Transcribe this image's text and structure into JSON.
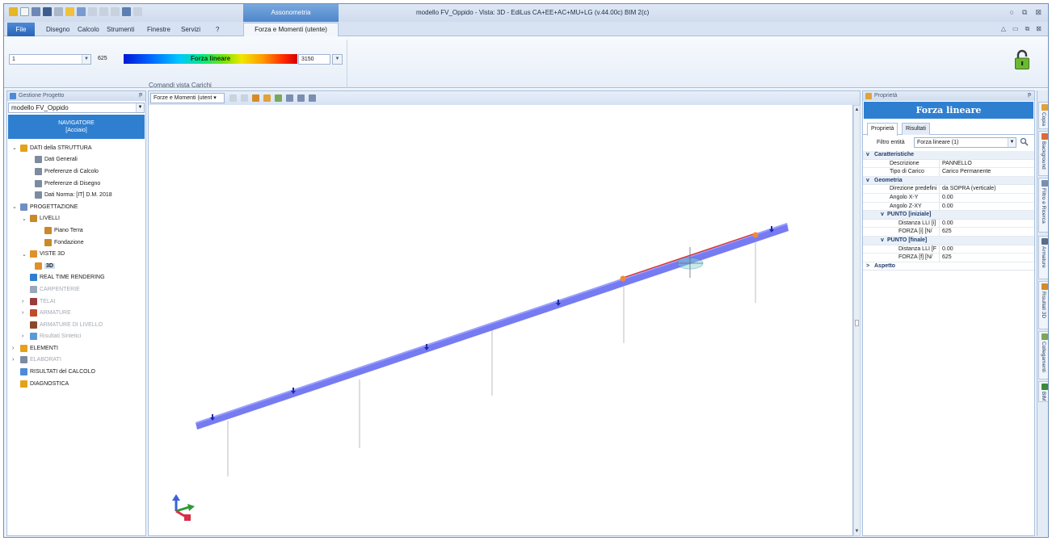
{
  "title_bar": {
    "app_title": "modello FV_Oppido - Vista: 3D - EdiLus CA+EE+AC+MU+LG (v.44.00c) BIM 2(c)",
    "contextual_group": "Assonometria",
    "window_buttons": [
      "○",
      "⧉",
      "⊠"
    ]
  },
  "menu": {
    "file": "File",
    "items": [
      "Disegno",
      "Calcolo",
      "Strumenti",
      "Finestre",
      "Servizi",
      "?"
    ],
    "contextual_tab": "Forza e Momenti (utente)",
    "mini_buttons": [
      "△",
      "▭",
      "⧉",
      "⊠"
    ]
  },
  "ribbon": {
    "selector_value": "1",
    "min_value": "625",
    "legend_label": "Forza lineare",
    "max_value": "3150",
    "group_label": "Comandi vista Carichi"
  },
  "left_panel": {
    "header": "Gestione Progetto",
    "pin": "ᵽ",
    "project": "modello FV_Oppido",
    "navigator_line1": "NAVIGATORE",
    "navigator_line2": "[Acciaio]",
    "tree": [
      {
        "label": "DATI della STRUTTURA",
        "level": 0,
        "chev": "v",
        "icon": "folder-icon",
        "color": "#e3a21a"
      },
      {
        "label": "Dati Generali",
        "level": 2,
        "chev": "",
        "icon": "document-icon",
        "color": "#7d8ba0"
      },
      {
        "label": "Preferenze di Calcolo",
        "level": 2,
        "chev": "",
        "icon": "document-icon",
        "color": "#7d8ba0"
      },
      {
        "label": "Preferenze di Disegno",
        "level": 2,
        "chev": "",
        "icon": "document-icon",
        "color": "#7d8ba0"
      },
      {
        "label": "Dati Norma: [IT] D.M. 2018",
        "level": 2,
        "chev": "",
        "icon": "document-icon",
        "color": "#7d8ba0"
      },
      {
        "label": "PROGETTAZIONE",
        "level": 0,
        "chev": "v",
        "icon": "design-icon",
        "color": "#6f8fc2"
      },
      {
        "label": "LIVELLI",
        "level": 1,
        "chev": "v",
        "icon": "levels-icon",
        "color": "#c9892a"
      },
      {
        "label": "Piano Terra",
        "level": 3,
        "chev": "",
        "icon": "floor-icon",
        "color": "#c9892a"
      },
      {
        "label": "Fondazione",
        "level": 3,
        "chev": "",
        "icon": "floor-icon",
        "color": "#c9892a"
      },
      {
        "label": "VISTE 3D",
        "level": 1,
        "chev": "v",
        "icon": "cube-icon",
        "color": "#e0902a"
      },
      {
        "label": "3D",
        "level": 2,
        "chev": "",
        "icon": "cube-icon",
        "color": "#e0902a",
        "sel": true
      },
      {
        "label": "REAL TIME RENDERING",
        "level": 1,
        "chev": "",
        "icon": "render-icon",
        "color": "#2f7fd1"
      },
      {
        "label": "CARPENTERIE",
        "level": 1,
        "chev": "",
        "icon": "carpentry-icon",
        "color": "#9aa7ba",
        "dim": true
      },
      {
        "label": "TELAI",
        "level": 1,
        "chev": ">",
        "icon": "frame-icon",
        "color": "#9b3b3b",
        "dim": true
      },
      {
        "label": "ARMATURE",
        "level": 1,
        "chev": ">",
        "icon": "rebar-icon",
        "color": "#c04a2a",
        "dim": true
      },
      {
        "label": "ARMATURE DI LIVELLO",
        "level": 1,
        "chev": "",
        "icon": "rebar-level-icon",
        "color": "#8a4a2a",
        "dim": true
      },
      {
        "label": "Risultati Sintetici",
        "level": 1,
        "chev": ">",
        "icon": "results-icon",
        "color": "#5a9bd4",
        "dim": true
      },
      {
        "label": "ELEMENTI",
        "level": 0,
        "chev": ">",
        "icon": "elements-icon",
        "color": "#e3a21a"
      },
      {
        "label": "ELABORATI",
        "level": 0,
        "chev": ">",
        "icon": "drawings-icon",
        "color": "#7d8ba0",
        "dim": true
      },
      {
        "label": "RISULTATI del CALCOLO",
        "level": 0,
        "chev": "",
        "icon": "calc-results-icon",
        "color": "#4d8ad6"
      },
      {
        "label": "DIAGNOSTICA",
        "level": 0,
        "chev": "",
        "icon": "diagnostics-icon",
        "color": "#e3a21a"
      }
    ]
  },
  "view_toolbar": {
    "mode": "Forze e Momenti (utent ▾"
  },
  "properties": {
    "header": "Proprietà",
    "title": "Forza lineare",
    "tabs": [
      "Proprietà",
      "Risultati"
    ],
    "filter_label": "Filtro entità",
    "filter_value": "Forza lineare (1)",
    "sections": {
      "caratteristiche": "Caratteristiche",
      "geometria": "Geometria",
      "punto_iniziale": "PUNTO [iniziale]",
      "punto_finale": "PUNTO [finale]",
      "aspetto": "Aspetto"
    },
    "rows": {
      "descrizione": [
        "Descrizione",
        "PANNELLO"
      ],
      "tipo_carico": [
        "Tipo di Carico",
        "Carico Permanente"
      ],
      "direzione": [
        "Direzione predefini",
        "da SOPRA (verticale)"
      ],
      "angolo_xy": [
        "Angolo X-Y",
        "0.00"
      ],
      "angolo_zxy": [
        "Angolo Z-XY",
        "0.00"
      ],
      "dist_i": [
        "Distanza LLI [i]",
        "0.00"
      ],
      "forza_i": [
        "FORZA [i] [N/",
        "625"
      ],
      "dist_f": [
        "Distanza LLI [F",
        "0.00"
      ],
      "forza_f": [
        "FORZA [f] [N/",
        "625"
      ]
    }
  },
  "side_tabs": [
    "Copia",
    "Background",
    "Filtro e Ricerca",
    "Armature",
    "Risultati 3D",
    "Collegamenti",
    "BIM"
  ],
  "colors": {
    "accent": "#2f7fd1",
    "beam": "#6f74f0",
    "load_line": "#e0302a",
    "node": "#f08a3a"
  }
}
